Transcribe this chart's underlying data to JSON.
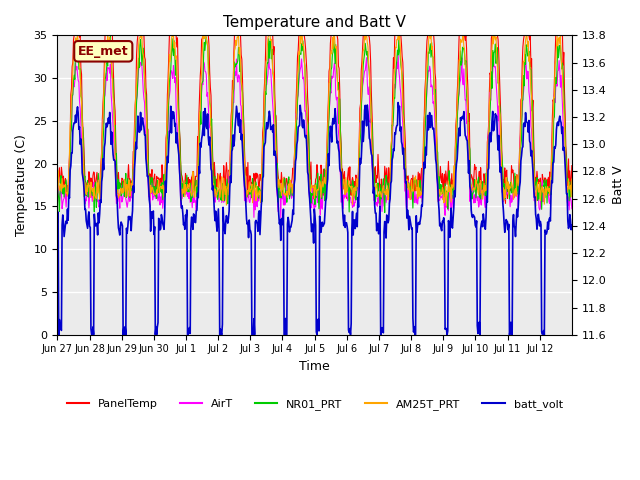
{
  "title": "Temperature and Batt V",
  "xlabel": "Time",
  "ylabel_left": "Temperature (C)",
  "ylabel_right": "Batt V",
  "ylim_left": [
    0,
    35
  ],
  "ylim_right": [
    11.6,
    13.8
  ],
  "annotation": "EE_met",
  "annotation_color": "#8B0000",
  "annotation_bg": "#FFFFC0",
  "x_tick_labels": [
    "Jun 27",
    "Jun 28",
    "Jun 29",
    "Jun 30",
    "Jul 1",
    "Jul 2",
    "Jul 3",
    "Jul 4",
    "Jul 5",
    "Jul 6",
    "Jul 7",
    "Jul 8",
    "Jul 9",
    "Jul 10",
    "Jul 11",
    "Jul 12"
  ],
  "x_tick_pos": [
    0,
    1,
    2,
    3,
    4,
    5,
    6,
    7,
    8,
    9,
    10,
    11,
    12,
    13,
    14,
    15
  ],
  "line_colors": {
    "PanelTemp": "#FF0000",
    "AirT": "#FF00FF",
    "NR01_PRT": "#00CC00",
    "AM25T_PRT": "#FFA500",
    "batt_volt": "#0000CC"
  },
  "legend_labels": [
    "PanelTemp",
    "AirT",
    "NR01_PRT",
    "AM25T_PRT",
    "batt_volt"
  ],
  "bg_color": "#FFFFFF",
  "num_days": 16,
  "pts_per_day": 48
}
